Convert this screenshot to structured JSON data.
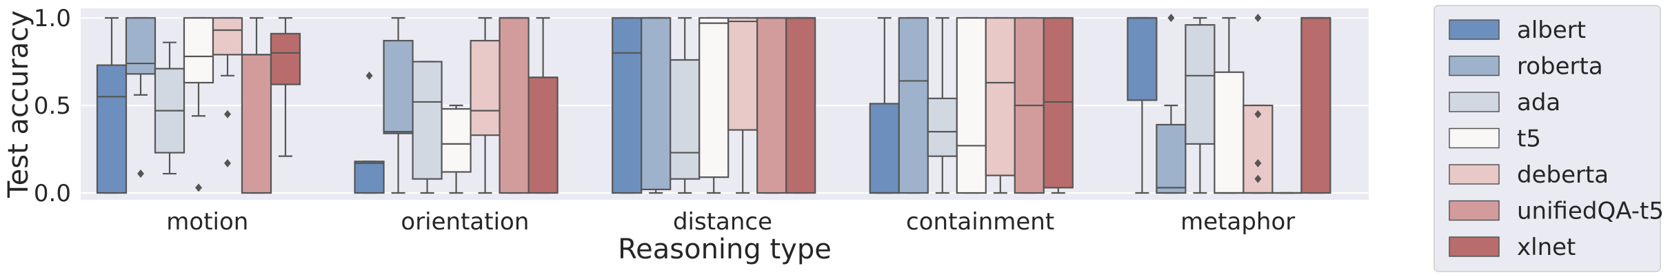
{
  "chart_data": {
    "type": "box",
    "title": "",
    "xlabel": "Reasoning type",
    "ylabel": "Test accuracy",
    "ylim": [
      -0.04,
      1.03
    ],
    "yticks": [
      0.0,
      0.5,
      1.0
    ],
    "ytick_labels": [
      "0.0",
      "0.5",
      "1.0"
    ],
    "grid": true,
    "legend_position": "right-outside",
    "categories": [
      "motion",
      "orientation",
      "distance",
      "containment",
      "metaphor"
    ],
    "series": [
      {
        "name": "albert",
        "color": "#6d8fbd",
        "boxes": [
          {
            "whislo": 0.0,
            "q1": 0.0,
            "med": 0.55,
            "q3": 0.73,
            "whishi": 1.0,
            "fliers": []
          },
          {
            "whislo": 0.0,
            "q1": 0.0,
            "med": 0.17,
            "q3": 0.18,
            "whishi": 0.18,
            "fliers": [
              0.67
            ]
          },
          {
            "whislo": 0.0,
            "q1": 0.0,
            "med": 0.8,
            "q3": 1.0,
            "whishi": 1.0,
            "fliers": []
          },
          {
            "whislo": 0.0,
            "q1": 0.0,
            "med": 0.0,
            "q3": 0.51,
            "whishi": 1.0,
            "fliers": []
          },
          {
            "whislo": 0.0,
            "q1": 0.53,
            "med": 1.0,
            "q3": 1.0,
            "whishi": 1.0,
            "fliers": []
          }
        ]
      },
      {
        "name": "roberta",
        "color": "#9eb2cc",
        "boxes": [
          {
            "whislo": 0.56,
            "q1": 0.68,
            "med": 0.74,
            "q3": 1.0,
            "whishi": 1.0,
            "fliers": [
              0.11
            ]
          },
          {
            "whislo": 0.0,
            "q1": 0.34,
            "med": 0.35,
            "q3": 0.87,
            "whishi": 1.0,
            "fliers": []
          },
          {
            "whislo": 0.0,
            "q1": 0.02,
            "med": 1.0,
            "q3": 1.0,
            "whishi": 1.0,
            "fliers": []
          },
          {
            "whislo": 0.0,
            "q1": 0.0,
            "med": 0.64,
            "q3": 1.0,
            "whishi": 1.0,
            "fliers": []
          },
          {
            "whislo": 0.0,
            "q1": 0.0,
            "med": 0.03,
            "q3": 0.39,
            "whishi": 0.5,
            "fliers": [
              1.0
            ]
          }
        ]
      },
      {
        "name": "ada",
        "color": "#d1d8e1",
        "boxes": [
          {
            "whislo": 0.11,
            "q1": 0.23,
            "med": 0.47,
            "q3": 0.71,
            "whishi": 0.86,
            "fliers": []
          },
          {
            "whislo": 0.0,
            "q1": 0.08,
            "med": 0.52,
            "q3": 0.75,
            "whishi": 0.75,
            "fliers": []
          },
          {
            "whislo": 0.0,
            "q1": 0.08,
            "med": 0.23,
            "q3": 0.76,
            "whishi": 1.0,
            "fliers": []
          },
          {
            "whislo": 0.0,
            "q1": 0.21,
            "med": 0.35,
            "q3": 0.54,
            "whishi": 1.0,
            "fliers": []
          },
          {
            "whislo": 0.0,
            "q1": 0.28,
            "med": 0.67,
            "q3": 0.96,
            "whishi": 1.0,
            "fliers": []
          }
        ]
      },
      {
        "name": "t5",
        "color": "#faf7f7",
        "boxes": [
          {
            "whislo": 0.44,
            "q1": 0.63,
            "med": 0.78,
            "q3": 1.0,
            "whishi": 1.0,
            "fliers": [
              0.03
            ]
          },
          {
            "whislo": 0.0,
            "q1": 0.12,
            "med": 0.28,
            "q3": 0.48,
            "whishi": 0.5,
            "fliers": []
          },
          {
            "whislo": 0.0,
            "q1": 0.09,
            "med": 0.97,
            "q3": 1.0,
            "whishi": 1.0,
            "fliers": []
          },
          {
            "whislo": 0.0,
            "q1": 0.0,
            "med": 0.27,
            "q3": 1.0,
            "whishi": 1.0,
            "fliers": []
          },
          {
            "whislo": 0.0,
            "q1": 0.0,
            "med": 0.0,
            "q3": 0.69,
            "whishi": 1.0,
            "fliers": []
          }
        ]
      },
      {
        "name": "deberta",
        "color": "#e9c8c8",
        "boxes": [
          {
            "whislo": 0.67,
            "q1": 0.79,
            "med": 0.93,
            "q3": 1.0,
            "whishi": 1.0,
            "fliers": [
              0.45,
              0.17
            ]
          },
          {
            "whislo": 0.0,
            "q1": 0.33,
            "med": 0.47,
            "q3": 0.87,
            "whishi": 1.0,
            "fliers": []
          },
          {
            "whislo": 0.0,
            "q1": 0.36,
            "med": 0.98,
            "q3": 1.0,
            "whishi": 1.0,
            "fliers": []
          },
          {
            "whislo": 0.0,
            "q1": 0.1,
            "med": 0.63,
            "q3": 1.0,
            "whishi": 1.0,
            "fliers": []
          },
          {
            "whislo": 0.0,
            "q1": 0.0,
            "med": 0.0,
            "q3": 0.5,
            "whishi": 0.5,
            "fliers": [
              1.0,
              0.45,
              0.17,
              0.08
            ]
          }
        ]
      },
      {
        "name": "unifiedQA-t5",
        "color": "#d39c9c",
        "boxes": [
          {
            "whislo": 0.0,
            "q1": 0.0,
            "med": 0.79,
            "q3": 0.79,
            "whishi": 1.0,
            "fliers": []
          },
          {
            "whislo": 0.0,
            "q1": 0.0,
            "med": 1.0,
            "q3": 1.0,
            "whishi": 1.0,
            "fliers": []
          },
          {
            "whislo": 0.0,
            "q1": 0.0,
            "med": 1.0,
            "q3": 1.0,
            "whishi": 1.0,
            "fliers": []
          },
          {
            "whislo": 0.0,
            "q1": 0.0,
            "med": 0.5,
            "q3": 1.0,
            "whishi": 1.0,
            "fliers": []
          },
          {
            "whislo": 0.0,
            "q1": 0.0,
            "med": 0.0,
            "q3": 0.0,
            "whishi": 0.0,
            "fliers": []
          }
        ]
      },
      {
        "name": "xlnet",
        "color": "#b86c6c",
        "boxes": [
          {
            "whislo": 0.21,
            "q1": 0.62,
            "med": 0.8,
            "q3": 0.91,
            "whishi": 1.0,
            "fliers": []
          },
          {
            "whislo": 0.0,
            "q1": 0.0,
            "med": 0.66,
            "q3": 0.66,
            "whishi": 1.0,
            "fliers": []
          },
          {
            "whislo": 0.0,
            "q1": 0.0,
            "med": 1.0,
            "q3": 1.0,
            "whishi": 1.0,
            "fliers": []
          },
          {
            "whislo": 0.0,
            "q1": 0.03,
            "med": 0.52,
            "q3": 1.0,
            "whishi": 1.0,
            "fliers": []
          },
          {
            "whislo": 0.0,
            "q1": 0.0,
            "med": 1.0,
            "q3": 1.0,
            "whishi": 1.0,
            "fliers": []
          }
        ]
      }
    ]
  }
}
